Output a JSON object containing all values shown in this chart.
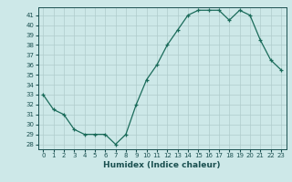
{
  "x": [
    0,
    1,
    2,
    3,
    4,
    5,
    6,
    7,
    8,
    9,
    10,
    11,
    12,
    13,
    14,
    15,
    16,
    17,
    18,
    19,
    20,
    21,
    22,
    23
  ],
  "y": [
    33,
    31.5,
    31,
    29.5,
    29,
    29,
    29,
    28,
    29,
    32,
    34.5,
    36,
    38,
    39.5,
    41,
    41.5,
    41.5,
    41.5,
    40.5,
    41.5,
    41,
    38.5,
    36.5,
    35.5
  ],
  "ylim": [
    27.5,
    41.8
  ],
  "yticks": [
    28,
    29,
    30,
    31,
    32,
    33,
    34,
    35,
    36,
    37,
    38,
    39,
    40,
    41
  ],
  "xticks": [
    0,
    1,
    2,
    3,
    4,
    5,
    6,
    7,
    8,
    9,
    10,
    11,
    12,
    13,
    14,
    15,
    16,
    17,
    18,
    19,
    20,
    21,
    22,
    23
  ],
  "xlabel": "Humidex (Indice chaleur)",
  "line_color": "#1a6b5a",
  "marker": "+",
  "bg_color": "#cde8e8",
  "grid_color": "#b0cccc",
  "text_color": "#1a5050"
}
